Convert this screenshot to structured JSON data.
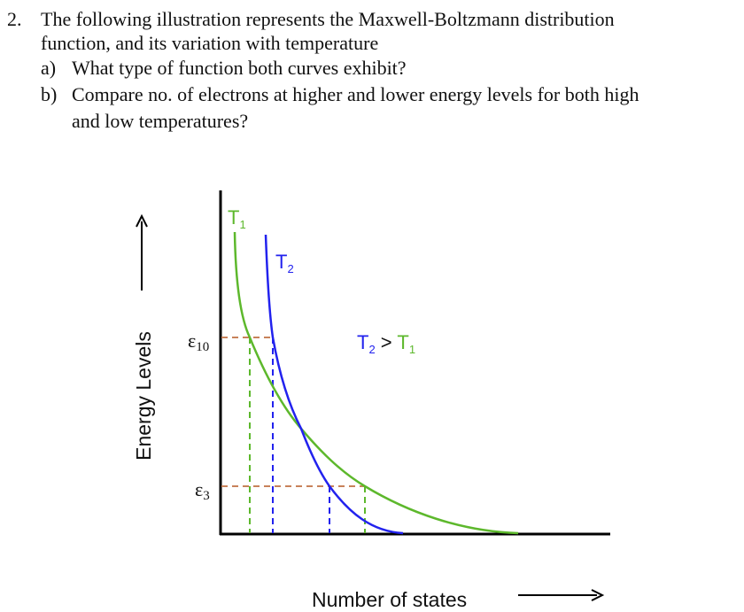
{
  "question": {
    "number": "2.",
    "line1": "The following illustration represents the Maxwell-Boltzmann distribution",
    "line2": "function, and its variation with temperature",
    "part_a_label": "a)",
    "part_a": "What type of function both curves exhibit?",
    "part_b_label": "b)",
    "part_b_line1": "Compare no. of electrons at higher and lower energy levels for both high",
    "part_b_line2": "and low temperatures?"
  },
  "diagram": {
    "y_axis_label": "Energy Levels",
    "x_axis_label": "Number of states",
    "curve_t1_label": "T",
    "curve_t1_sub": "1",
    "curve_t2_label": "T",
    "curve_t2_sub": "2",
    "relation_left": "T",
    "relation_left_sub": "2",
    "relation_op": " > ",
    "relation_right": "T",
    "relation_right_sub": "1",
    "level_high": "ε",
    "level_high_sub": "10",
    "level_low": "ε",
    "level_low_sub": "3",
    "colors": {
      "t1": "#5db82c",
      "t2": "#2222ee",
      "guide": "#c8825a"
    }
  }
}
